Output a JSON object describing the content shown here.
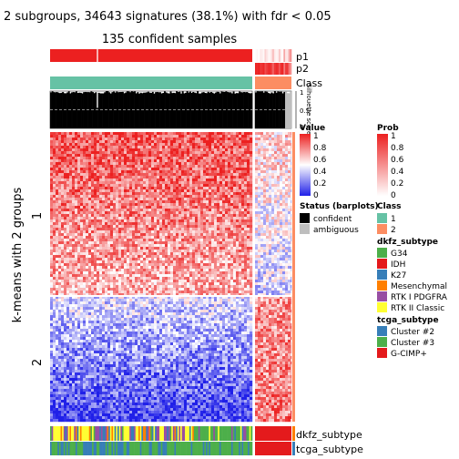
{
  "chart_data": {
    "type": "heatmap",
    "title": "2 subgroups, 34643 signatures (38.1%) with fdr < 0.05",
    "subtitle": "135 confident samples",
    "ylabel": "k-means with 2 groups",
    "row_groups": [
      "1",
      "2"
    ],
    "column_groups": {
      "confident_samples": 135,
      "ambiguous_samples": 23
    },
    "top_annotations": [
      "p1",
      "p2",
      "Class"
    ],
    "silhouette": {
      "axis_label": "Silhouette score",
      "ticks": [
        "1",
        "0.5",
        "0"
      ]
    },
    "bottom_annotations": [
      "dkfz_subtype",
      "tcga_subtype"
    ],
    "value_scale": [
      0,
      0.2,
      0.4,
      0.6,
      0.8,
      1
    ],
    "value_range": [
      0,
      1
    ],
    "legends": {
      "value": {
        "title": "Value",
        "labels": [
          "1",
          "0.8",
          "0.6",
          "0.4",
          "0.2",
          "0"
        ],
        "colors": [
          "#2020e8",
          "#ffffff",
          "#ec2020"
        ]
      },
      "prob": {
        "title": "Prob",
        "labels": [
          "1",
          "0.8",
          "0.6",
          "0.4",
          "0.2",
          "0"
        ],
        "colors": [
          "#ffffff",
          "#ec2020"
        ]
      },
      "status": {
        "title": "Status (barplots)",
        "items": [
          {
            "label": "confident",
            "color": "#000000"
          },
          {
            "label": "ambiguous",
            "color": "#bebebe"
          }
        ]
      },
      "class": {
        "title": "Class",
        "items": [
          {
            "label": "1",
            "color": "#66c2a5"
          },
          {
            "label": "2",
            "color": "#fc8d62"
          }
        ]
      },
      "dkfz_subtype": {
        "title": "dkfz_subtype",
        "items": [
          {
            "label": "G34",
            "color": "#4daf4a"
          },
          {
            "label": "IDH",
            "color": "#e41a1c"
          },
          {
            "label": "K27",
            "color": "#377eb8"
          },
          {
            "label": "Mesenchymal",
            "color": "#ff7f00"
          },
          {
            "label": "RTK I PDGFRA",
            "color": "#984ea3"
          },
          {
            "label": "RTK II Classic",
            "color": "#ffff33"
          }
        ]
      },
      "tcga_subtype": {
        "title": "tcga_subtype",
        "items": [
          {
            "label": "Cluster #2",
            "color": "#377eb8"
          },
          {
            "label": "Cluster #3",
            "color": "#4daf4a"
          },
          {
            "label": "G-CIMP+",
            "color": "#e41a1c"
          }
        ]
      }
    }
  }
}
